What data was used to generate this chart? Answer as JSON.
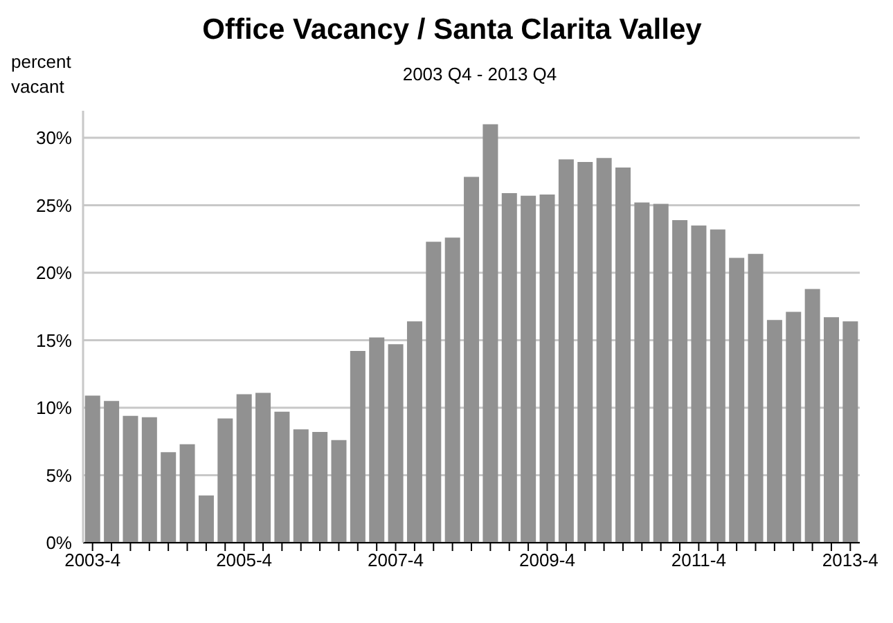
{
  "chart_data": {
    "type": "bar",
    "title": "Office Vacancy / Santa Clarita Valley",
    "subtitle": "2003 Q4 - 2013 Q4",
    "ylabel": "percent\nvacant",
    "categories": [
      "2003-4",
      null,
      null,
      null,
      null,
      null,
      null,
      null,
      "2005-4",
      null,
      null,
      null,
      null,
      null,
      null,
      null,
      "2007-4",
      null,
      null,
      null,
      null,
      null,
      null,
      null,
      "2009-4",
      null,
      null,
      null,
      null,
      null,
      null,
      null,
      "2011-4",
      null,
      null,
      null,
      null,
      null,
      null,
      null,
      "2013-4"
    ],
    "values": [
      10.9,
      10.5,
      9.4,
      9.3,
      6.7,
      7.3,
      3.5,
      9.2,
      11.0,
      11.1,
      9.7,
      8.4,
      8.2,
      7.6,
      14.2,
      15.2,
      14.7,
      16.4,
      22.3,
      22.6,
      27.1,
      31.0,
      25.9,
      25.7,
      25.8,
      28.4,
      28.2,
      28.5,
      27.8,
      25.2,
      25.1,
      23.9,
      23.5,
      23.2,
      21.1,
      21.4,
      16.5,
      17.1,
      18.8,
      16.7,
      16.4
    ],
    "color": "#919191",
    "ylim": [
      0,
      32
    ],
    "yticks": [
      {
        "value": 0,
        "label": "0%"
      },
      {
        "value": 5,
        "label": "5%"
      },
      {
        "value": 10,
        "label": "10%"
      },
      {
        "value": 15,
        "label": "15%"
      },
      {
        "value": 20,
        "label": "20%"
      },
      {
        "value": 25,
        "label": "25%"
      },
      {
        "value": 30,
        "label": "30%"
      }
    ],
    "grid": "y",
    "legend": false
  }
}
